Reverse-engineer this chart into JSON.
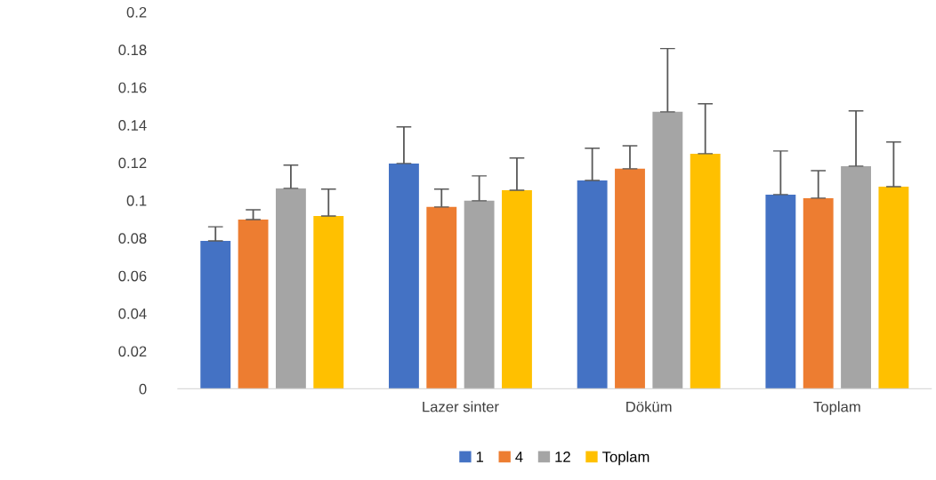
{
  "chart_data": {
    "type": "bar",
    "categories": [
      null,
      "Lazer sinter",
      "Döküm",
      "Toplam"
    ],
    "series": [
      {
        "name": "1",
        "color": "#4472c4",
        "values": [
          0.0785,
          0.1196,
          0.1106,
          0.1031
        ],
        "errors": [
          [
            0.0785,
            0.086
          ],
          [
            0.1196,
            0.139
          ],
          [
            0.1106,
            0.1277
          ],
          [
            0.1031,
            0.1262
          ]
        ]
      },
      {
        "name": "4",
        "color": "#ed7d31",
        "values": [
          0.0898,
          0.0965,
          0.1168,
          0.1012
        ],
        "errors": [
          [
            0.0898,
            0.095
          ],
          [
            0.0965,
            0.106
          ],
          [
            0.1168,
            0.129
          ],
          [
            0.1012,
            0.1158
          ]
        ]
      },
      {
        "name": "12",
        "color": "#a5a5a5",
        "values": [
          0.1064,
          0.0998,
          0.147,
          0.1182
        ],
        "errors": [
          [
            0.1064,
            0.1187
          ],
          [
            0.0998,
            0.113
          ],
          [
            0.147,
            0.1806
          ],
          [
            0.1182,
            0.1475
          ]
        ]
      },
      {
        "name": "Toplam",
        "color": "#ffc000",
        "values": [
          0.0917,
          0.1054,
          0.1248,
          0.1073
        ],
        "errors": [
          [
            0.0917,
            0.106
          ],
          [
            0.1054,
            0.1225
          ],
          [
            0.1248,
            0.1513
          ],
          [
            0.1073,
            0.131
          ]
        ]
      }
    ],
    "ylim": [
      0,
      0.2
    ],
    "yticks": [
      0,
      0.02,
      0.04,
      0.06,
      0.08,
      0.1,
      0.12,
      0.14,
      0.16,
      0.18,
      0.2
    ],
    "grid": false,
    "legend": "bottom"
  }
}
